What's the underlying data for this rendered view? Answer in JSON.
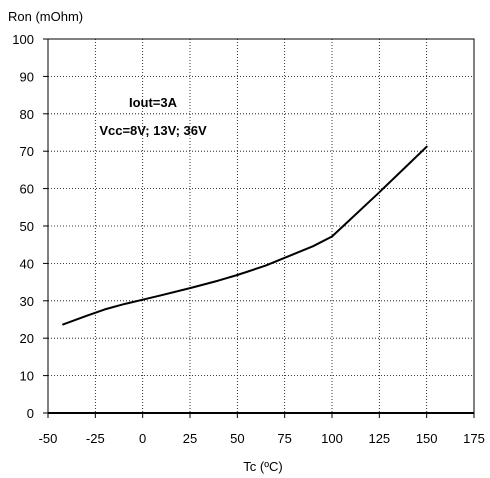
{
  "chart_data": {
    "type": "line",
    "title": "",
    "xlabel": "Tc (ºC)",
    "ylabel": "Ron (mOhm)",
    "xlim": [
      -50,
      175
    ],
    "ylim": [
      0,
      100
    ],
    "x_ticks": [
      -50,
      -25,
      0,
      25,
      50,
      75,
      100,
      125,
      150,
      175
    ],
    "y_ticks": [
      0,
      10,
      20,
      30,
      40,
      50,
      60,
      70,
      80,
      90,
      100
    ],
    "grid": true,
    "annotations": [
      "Iout=3A",
      "Vcc=8V; 13V; 36V"
    ],
    "series": [
      {
        "name": "",
        "color": "#000000",
        "x": [
          -42,
          -30,
          -20,
          -10,
          0,
          10,
          25,
          40,
          50,
          65,
          75,
          90,
          100,
          110,
          125,
          140,
          150
        ],
        "y": [
          23.7,
          25.9,
          27.7,
          29.1,
          30.3,
          31.5,
          33.4,
          35.4,
          36.9,
          39.4,
          41.5,
          44.6,
          47.2,
          51.9,
          59.0,
          66.3,
          71.2
        ]
      }
    ]
  }
}
